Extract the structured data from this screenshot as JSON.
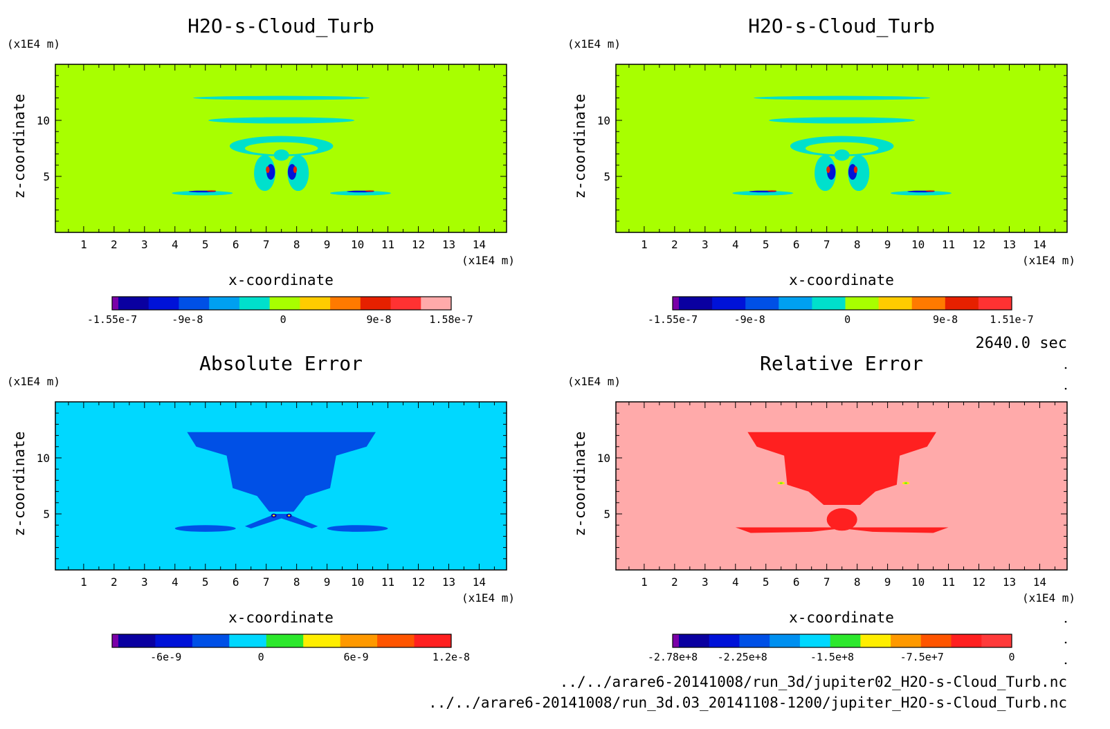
{
  "time_label": "2640.0 sec",
  "files": [
    "../../arare6-20141008/run_3d/jupiter02_H2O-s-Cloud_Turb.nc",
    "../../arare6-20141008/run_3d.03_20141108-1200/jupiter_H2O-s-Cloud_Turb.nc"
  ],
  "colors": {
    "levels": [
      "#7a00a8",
      "#0a00a0",
      "#0012d8",
      "#0050e6",
      "#00a0f0",
      "#00e0cc",
      "#a8ff00",
      "#ffcc00",
      "#ff7a00",
      "#e62000",
      "#ff3232",
      "#ffaaaa"
    ]
  },
  "chart_data": [
    {
      "type": "heatmap",
      "title": "H2O-s-Cloud_Turb",
      "xlabel": "x-coordinate",
      "ylabel": "z-coordinate",
      "x_unit": "(x1E4 m)",
      "y_unit": "(x1E4 m)",
      "xlim": [
        0.07,
        14.9
      ],
      "ylim": [
        0.0,
        15.0
      ],
      "x_ticks": [
        "1",
        "2",
        "3",
        "4",
        "5",
        "6",
        "7",
        "8",
        "9",
        "10",
        "11",
        "12",
        "13",
        "14"
      ],
      "y_ticks": [
        "5",
        "10"
      ],
      "background": "#a8ff00",
      "colorbar": {
        "range": [
          -1.55e-07,
          1.58e-07
        ],
        "colors": [
          "#7a00a8",
          "#0a00a0",
          "#0012d8",
          "#0050e6",
          "#00a0f0",
          "#00e0cc",
          "#a8ff00",
          "#ffcc00",
          "#ff7a00",
          "#e62000",
          "#ff3232",
          "#ffaaaa"
        ],
        "ticks": [
          "-1.55e-7",
          "-9e-8",
          "0",
          "9e-8",
          "1.58e-7"
        ]
      }
    },
    {
      "type": "heatmap",
      "title": "H2O-s-Cloud_Turb",
      "xlabel": "x-coordinate",
      "ylabel": "z-coordinate",
      "x_unit": "(x1E4 m)",
      "y_unit": "(x1E4 m)",
      "xlim": [
        0.07,
        14.9
      ],
      "ylim": [
        0.0,
        15.0
      ],
      "x_ticks": [
        "1",
        "2",
        "3",
        "4",
        "5",
        "6",
        "7",
        "8",
        "9",
        "10",
        "11",
        "12",
        "13",
        "14"
      ],
      "y_ticks": [
        "5",
        "10"
      ],
      "background": "#a8ff00",
      "colorbar": {
        "range": [
          -1.55e-07,
          1.51e-07
        ],
        "colors": [
          "#7a00a8",
          "#0a00a0",
          "#0012d8",
          "#0050e6",
          "#00a0f0",
          "#00e0cc",
          "#a8ff00",
          "#ffcc00",
          "#ff7a00",
          "#e62000",
          "#ff3232"
        ],
        "ticks": [
          "-1.55e-7",
          "-9e-8",
          "0",
          "9e-8",
          "1.51e-7"
        ]
      }
    },
    {
      "type": "heatmap",
      "title": "Absolute Error",
      "xlabel": "x-coordinate",
      "ylabel": "z-coordinate",
      "x_unit": "(x1E4 m)",
      "y_unit": "(x1E4 m)",
      "xlim": [
        0.07,
        14.9
      ],
      "ylim": [
        0.0,
        15.0
      ],
      "x_ticks": [
        "1",
        "2",
        "3",
        "4",
        "5",
        "6",
        "7",
        "8",
        "9",
        "10",
        "11",
        "12",
        "13",
        "14"
      ],
      "y_ticks": [
        "5",
        "10"
      ],
      "background": "#00d8ff",
      "colorbar": {
        "range": [
          -9e-09,
          1.2e-08
        ],
        "colors": [
          "#7a00a8",
          "#0a00a0",
          "#0012d8",
          "#0050e6",
          "#00d8ff",
          "#2de82d",
          "#ffee00",
          "#ff9900",
          "#ff5500",
          "#ff2020"
        ],
        "ticks": [
          "-6e-9",
          "0",
          "6e-9",
          "1.2e-8"
        ]
      }
    },
    {
      "type": "heatmap",
      "title": "Relative Error",
      "xlabel": "x-coordinate",
      "ylabel": "z-coordinate",
      "x_unit": "(x1E4 m)",
      "y_unit": "(x1E4 m)",
      "xlim": [
        0.07,
        14.9
      ],
      "ylim": [
        0.0,
        15.0
      ],
      "x_ticks": [
        "1",
        "2",
        "3",
        "4",
        "5",
        "6",
        "7",
        "8",
        "9",
        "10",
        "11",
        "12",
        "13",
        "14"
      ],
      "y_ticks": [
        "5",
        "10"
      ],
      "background": "#ffaaaa",
      "colorbar": {
        "range": [
          -278000000.0,
          0
        ],
        "colors": [
          "#7a00a8",
          "#0a00a0",
          "#0012d8",
          "#0050e6",
          "#0090f0",
          "#00d8ff",
          "#2de82d",
          "#ffee00",
          "#ff9900",
          "#ff5500",
          "#ff2020",
          "#ff3a3a"
        ],
        "ticks": [
          "-2.78e+8",
          "-2.25e+8",
          "-1.5e+8",
          "-7.5e+7",
          "0"
        ]
      }
    }
  ]
}
